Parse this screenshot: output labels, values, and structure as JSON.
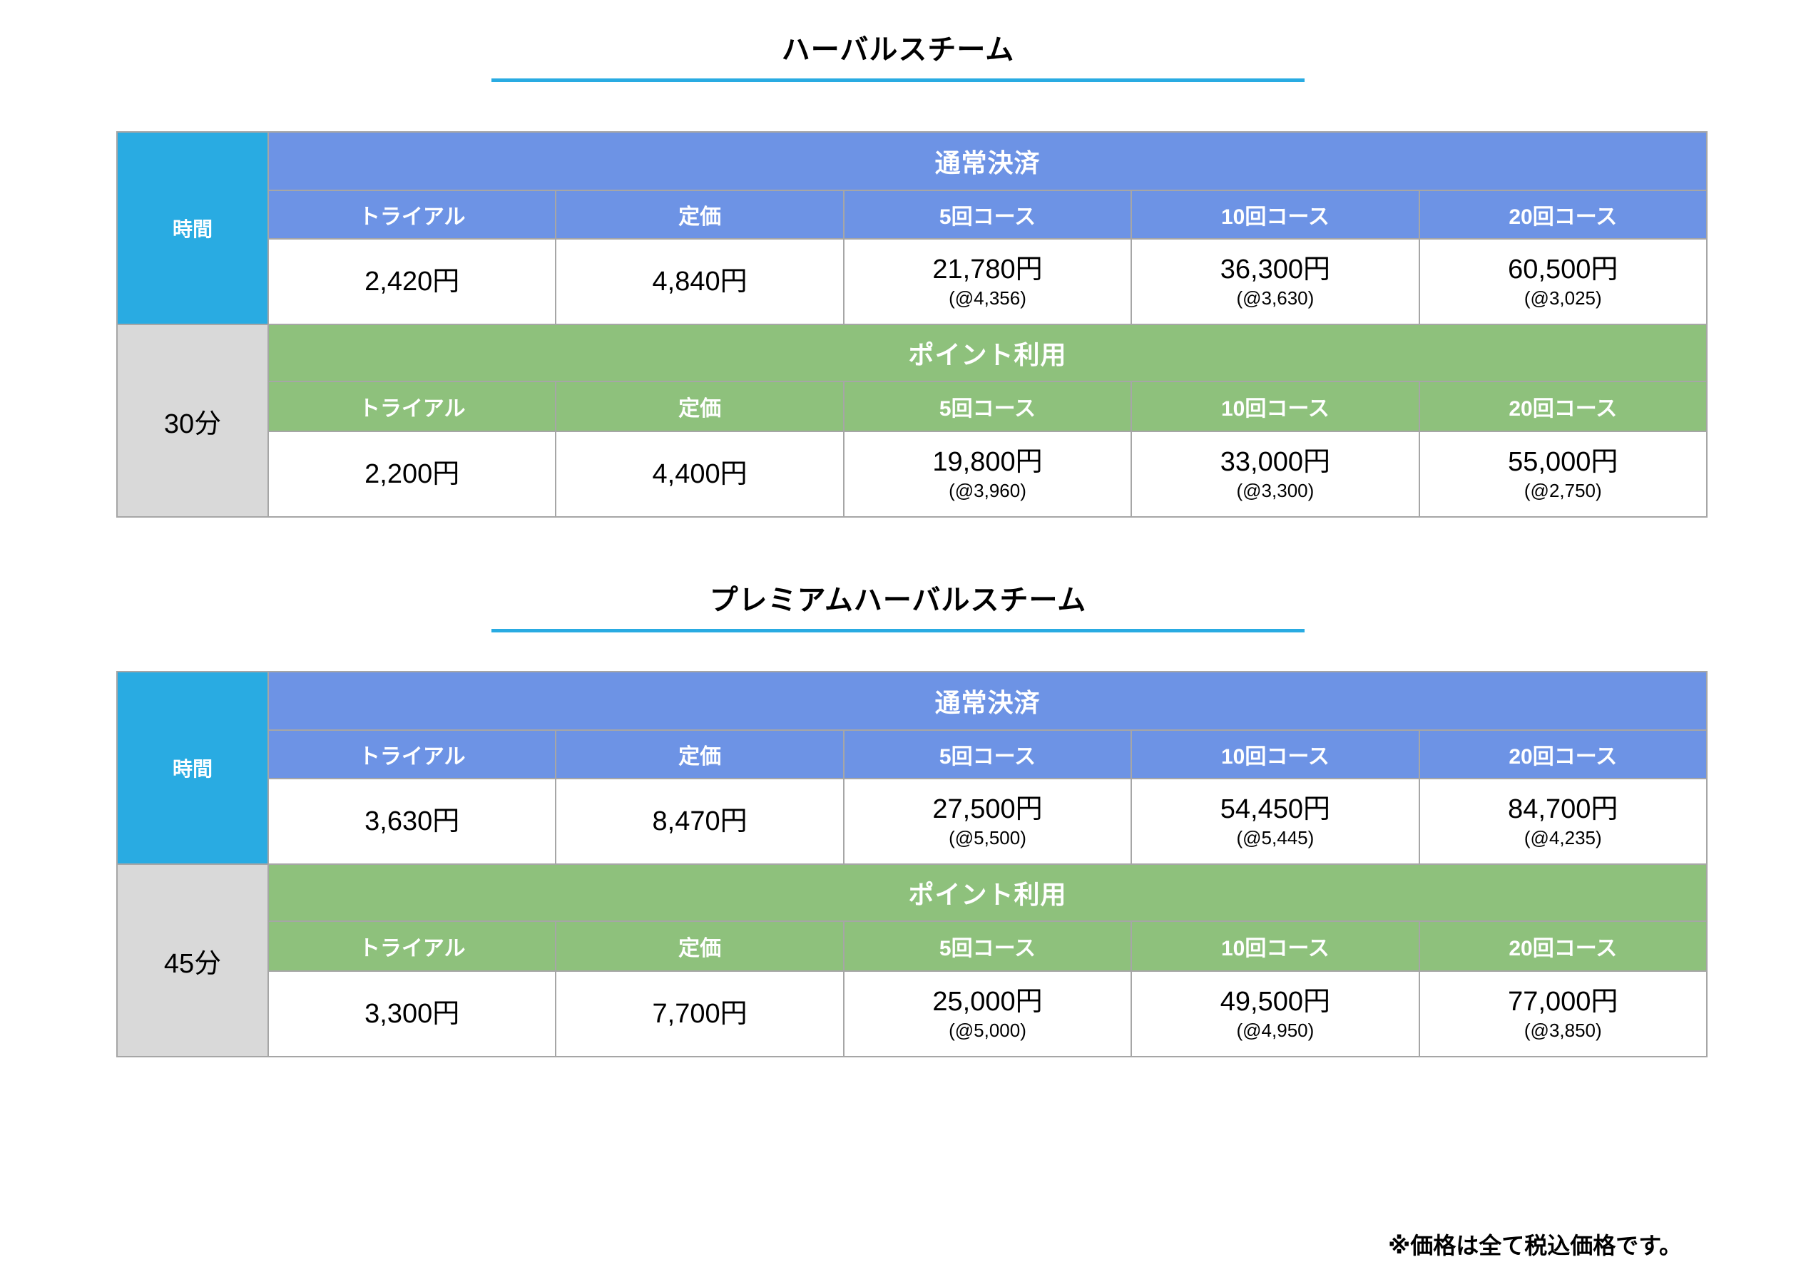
{
  "colors": {
    "cyan": "#29ABE2",
    "blue": "#6D93E5",
    "green": "#8EC17C",
    "gray": "#D9D9D9",
    "border": "#A6A6A6",
    "underline": "#29ABE2"
  },
  "page": {
    "footnote": "※価格は全て税込価格です。"
  },
  "tables": [
    {
      "title": "ハーバルスチーム",
      "time_header": "時間",
      "duration": "30分",
      "sections": [
        {
          "name": "通常決済",
          "columns": [
            "トライアル",
            "定価",
            "5回コース",
            "10回コース",
            "20回コース"
          ],
          "prices": [
            "2,420円",
            "4,840円",
            "21,780円",
            "36,300円",
            "60,500円"
          ],
          "unit_prices": [
            "",
            "",
            "(@4,356)",
            "(@3,630)",
            "(@3,025)"
          ]
        },
        {
          "name": "ポイント利用",
          "columns": [
            "トライアル",
            "定価",
            "5回コース",
            "10回コース",
            "20回コース"
          ],
          "prices": [
            "2,200円",
            "4,400円",
            "19,800円",
            "33,000円",
            "55,000円"
          ],
          "unit_prices": [
            "",
            "",
            "(@3,960)",
            "(@3,300)",
            "(@2,750)"
          ]
        }
      ]
    },
    {
      "title": "プレミアムハーバルスチーム",
      "time_header": "時間",
      "duration": "45分",
      "sections": [
        {
          "name": "通常決済",
          "columns": [
            "トライアル",
            "定価",
            "5回コース",
            "10回コース",
            "20回コース"
          ],
          "prices": [
            "3,630円",
            "8,470円",
            "27,500円",
            "54,450円",
            "84,700円"
          ],
          "unit_prices": [
            "",
            "",
            "(@5,500)",
            "(@5,445)",
            "(@4,235)"
          ]
        },
        {
          "name": "ポイント利用",
          "columns": [
            "トライアル",
            "定価",
            "5回コース",
            "10回コース",
            "20回コース"
          ],
          "prices": [
            "3,300円",
            "7,700円",
            "25,000円",
            "49,500円",
            "77,000円"
          ],
          "unit_prices": [
            "",
            "",
            "(@5,000)",
            "(@4,950)",
            "(@3,850)"
          ]
        }
      ]
    }
  ]
}
